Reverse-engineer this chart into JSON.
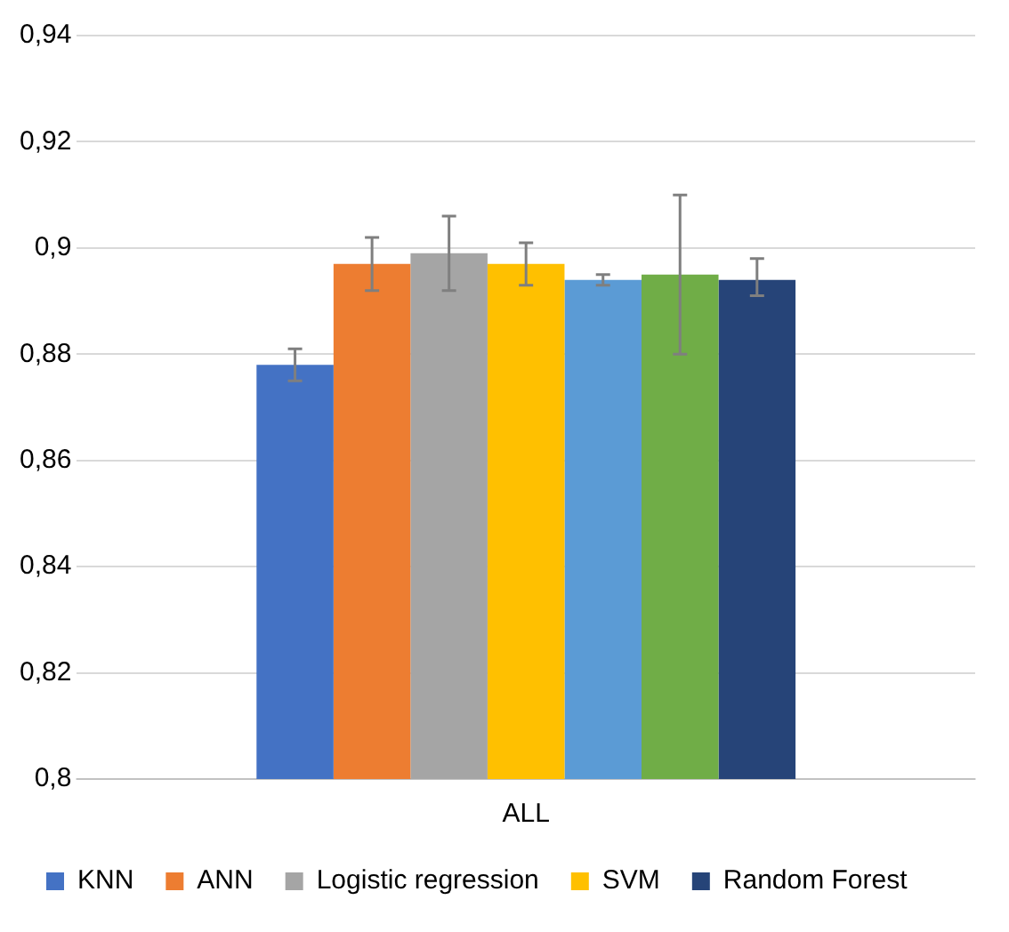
{
  "chart_data": {
    "type": "bar",
    "categories": [
      "ALL"
    ],
    "series": [
      {
        "name": "KNN",
        "color": "#4472c4",
        "values": [
          0.878
        ],
        "errors": [
          [
            0.875,
            0.881
          ]
        ]
      },
      {
        "name": "ANN",
        "color": "#ed7d31",
        "values": [
          0.897
        ],
        "errors": [
          [
            0.892,
            0.902
          ]
        ]
      },
      {
        "name": "Logistic regression",
        "color": "#a5a5a5",
        "values": [
          0.899
        ],
        "errors": [
          [
            0.892,
            0.906
          ]
        ]
      },
      {
        "name": "SVM",
        "color": "#ffc000",
        "values": [
          0.897
        ],
        "errors": [
          [
            0.893,
            0.901
          ]
        ]
      },
      {
        "color": "#5b9bd5",
        "values": [
          0.894
        ],
        "errors": [
          [
            0.893,
            0.895
          ]
        ]
      },
      {
        "color": "#70ad47",
        "values": [
          0.895
        ],
        "errors": [
          [
            0.88,
            0.91
          ]
        ]
      },
      {
        "name": "Random Forest",
        "color": "#264478",
        "values": [
          0.894
        ],
        "errors": [
          [
            0.891,
            0.898
          ]
        ]
      }
    ],
    "ylim": [
      0.8,
      0.94
    ],
    "yticks": [
      {
        "value": 0.8,
        "label": "0,8"
      },
      {
        "value": 0.82,
        "label": "0,82"
      },
      {
        "value": 0.84,
        "label": "0,84"
      },
      {
        "value": 0.86,
        "label": "0,86"
      },
      {
        "value": 0.88,
        "label": "0,88"
      },
      {
        "value": 0.9,
        "label": "0,9"
      },
      {
        "value": 0.92,
        "label": "0,92"
      },
      {
        "value": 0.94,
        "label": "0,94"
      }
    ],
    "grid": "y",
    "legend": "bottom"
  }
}
